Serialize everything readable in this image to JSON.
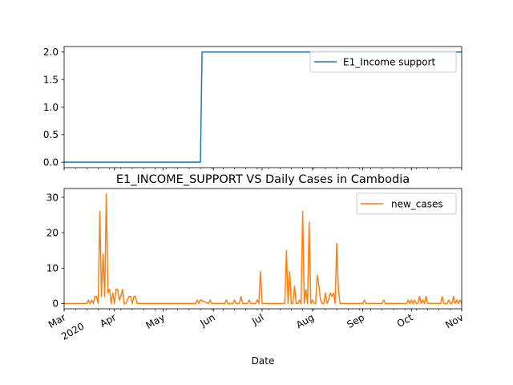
{
  "chart_data": [
    {
      "type": "line",
      "title": "",
      "xlabel": "",
      "ylabel": "",
      "x_range": [
        "2020-03-01",
        "2020-11-01"
      ],
      "ylim": [
        -0.1,
        2.1
      ],
      "yticks": [
        "0.0",
        "0.5",
        "1.0",
        "1.5",
        "2.0"
      ],
      "legend_position": "upper right",
      "grid": false,
      "series": [
        {
          "name": "E1_Income support",
          "color": "#1f77b4",
          "x": [
            "2020-03-01",
            "2020-05-24",
            "2020-05-25",
            "2020-11-01"
          ],
          "values": [
            0,
            0,
            2,
            2
          ]
        }
      ]
    },
    {
      "type": "line",
      "title": "E1_INCOME_SUPPORT VS Daily Cases in Cambodia",
      "xlabel": "Date",
      "ylabel": "",
      "x_range": [
        "2020-03-01",
        "2020-11-01"
      ],
      "ylim": [
        -1.5,
        32.5
      ],
      "yticks": [
        "0",
        "10",
        "20",
        "30"
      ],
      "xticks": [
        {
          "date": "2020-03-01",
          "label": "Mar",
          "sublabel": "2020"
        },
        {
          "date": "2020-04-01",
          "label": "Apr"
        },
        {
          "date": "2020-05-01",
          "label": "May"
        },
        {
          "date": "2020-06-01",
          "label": "Jun"
        },
        {
          "date": "2020-07-01",
          "label": "Jul"
        },
        {
          "date": "2020-08-01",
          "label": "Aug"
        },
        {
          "date": "2020-09-01",
          "label": "Sep"
        },
        {
          "date": "2020-10-01",
          "label": "Oct"
        },
        {
          "date": "2020-11-01",
          "label": "Nov"
        }
      ],
      "legend_position": "upper right",
      "grid": false,
      "series": [
        {
          "name": "new_cases",
          "color": "#ff7f0e",
          "x": [
            "2020-03-01",
            "2020-03-15",
            "2020-03-16",
            "2020-03-17",
            "2020-03-18",
            "2020-03-19",
            "2020-03-20",
            "2020-03-21",
            "2020-03-22",
            "2020-03-23",
            "2020-03-24",
            "2020-03-25",
            "2020-03-26",
            "2020-03-27",
            "2020-03-28",
            "2020-03-29",
            "2020-03-30",
            "2020-03-31",
            "2020-04-01",
            "2020-04-02",
            "2020-04-03",
            "2020-04-04",
            "2020-04-05",
            "2020-04-06",
            "2020-04-07",
            "2020-04-08",
            "2020-04-09",
            "2020-04-10",
            "2020-04-11",
            "2020-04-12",
            "2020-04-13",
            "2020-04-14",
            "2020-04-15",
            "2020-05-21",
            "2020-05-22",
            "2020-05-23",
            "2020-05-24",
            "2020-05-29",
            "2020-05-30",
            "2020-05-31",
            "2020-06-08",
            "2020-06-09",
            "2020-06-10",
            "2020-06-13",
            "2020-06-14",
            "2020-06-15",
            "2020-06-17",
            "2020-06-18",
            "2020-06-19",
            "2020-06-22",
            "2020-06-23",
            "2020-06-24",
            "2020-06-27",
            "2020-06-28",
            "2020-06-29",
            "2020-06-30",
            "2020-07-01",
            "2020-07-14",
            "2020-07-15",
            "2020-07-16",
            "2020-07-17",
            "2020-07-18",
            "2020-07-19",
            "2020-07-20",
            "2020-07-21",
            "2020-07-22",
            "2020-07-23",
            "2020-07-24",
            "2020-07-25",
            "2020-07-26",
            "2020-07-27",
            "2020-07-28",
            "2020-07-29",
            "2020-07-30",
            "2020-07-31",
            "2020-08-01",
            "2020-08-02",
            "2020-08-03",
            "2020-08-04",
            "2020-08-05",
            "2020-08-06",
            "2020-08-07",
            "2020-08-08",
            "2020-08-09",
            "2020-08-10",
            "2020-08-11",
            "2020-08-12",
            "2020-08-13",
            "2020-08-14",
            "2020-08-15",
            "2020-08-16",
            "2020-08-17",
            "2020-08-18",
            "2020-08-19",
            "2020-09-01",
            "2020-09-02",
            "2020-09-03",
            "2020-09-13",
            "2020-09-14",
            "2020-09-15",
            "2020-09-28",
            "2020-09-29",
            "2020-09-30",
            "2020-10-01",
            "2020-10-02",
            "2020-10-03",
            "2020-10-04",
            "2020-10-05",
            "2020-10-06",
            "2020-10-07",
            "2020-10-08",
            "2020-10-09",
            "2020-10-10",
            "2020-10-11",
            "2020-10-12",
            "2020-10-13",
            "2020-10-19",
            "2020-10-20",
            "2020-10-21",
            "2020-10-23",
            "2020-10-24",
            "2020-10-25",
            "2020-10-26",
            "2020-10-27",
            "2020-10-28",
            "2020-10-29",
            "2020-10-30",
            "2020-10-31",
            "2020-11-01"
          ],
          "values": [
            0,
            0,
            1,
            0,
            1,
            0,
            2,
            2,
            0,
            26,
            2,
            14,
            2,
            31,
            3,
            4,
            0,
            3,
            0,
            4,
            4,
            1,
            2,
            4,
            0,
            0,
            1,
            2,
            2,
            0,
            2,
            2,
            0,
            0,
            1,
            0,
            1,
            0,
            1,
            0,
            0,
            1,
            0,
            0,
            1,
            0,
            0,
            2,
            0,
            0,
            1,
            0,
            0,
            1,
            0,
            9,
            0,
            0,
            0,
            15,
            0,
            9,
            0,
            0,
            5,
            0,
            0,
            1,
            0,
            26,
            0,
            4,
            0,
            23,
            0,
            1,
            0,
            0,
            8,
            5,
            1,
            0,
            0,
            3,
            0,
            1,
            3,
            2,
            3,
            0,
            17,
            4,
            0,
            0,
            0,
            1,
            0,
            0,
            1,
            0,
            0,
            1,
            0,
            1,
            0,
            1,
            0,
            0,
            2,
            0,
            1,
            0,
            2,
            0,
            0,
            0,
            0,
            2,
            0,
            0,
            1,
            0,
            0,
            2,
            0,
            1,
            0,
            1,
            0
          ]
        }
      ]
    }
  ]
}
